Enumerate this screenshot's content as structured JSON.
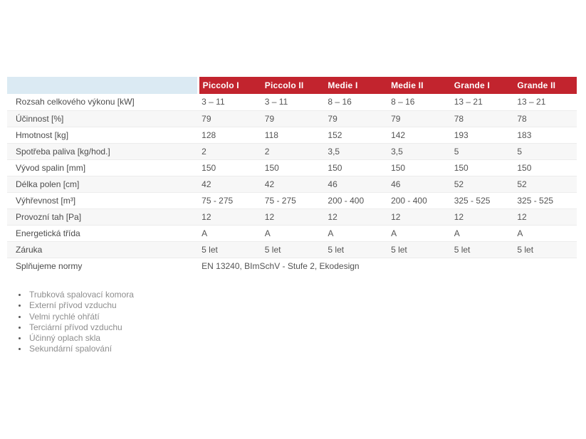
{
  "table": {
    "header": {
      "label_cell": "",
      "columns": [
        "Piccolo I",
        "Piccolo II",
        "Medie I",
        "Medie II",
        "Grande I",
        "Grande II"
      ]
    },
    "rows": [
      {
        "label": "Rozsah celkového výkonu [kW]",
        "values": [
          "3 – 11",
          "3 – 11",
          "8 – 16",
          "8 – 16",
          "13 – 21",
          "13 – 21"
        ]
      },
      {
        "label": "Účinnost [%]",
        "values": [
          "79",
          "79",
          "79",
          "79",
          "78",
          "78"
        ]
      },
      {
        "label": "Hmotnost [kg]",
        "values": [
          "128",
          "118",
          "152",
          "142",
          "193",
          "183"
        ]
      },
      {
        "label": "Spotřeba paliva [kg/hod.]",
        "values": [
          "2",
          "2",
          "3,5",
          "3,5",
          "5",
          "5"
        ]
      },
      {
        "label": "Vývod spalin [mm]",
        "values": [
          "150",
          "150",
          "150",
          "150",
          "150",
          "150"
        ]
      },
      {
        "label": "Délka polen [cm]",
        "values": [
          "42",
          "42",
          "46",
          "46",
          "52",
          "52"
        ]
      },
      {
        "label": "Výhřevnost [m³]",
        "values": [
          "75 - 275",
          "75 - 275",
          "200 - 400",
          "200 - 400",
          "325 - 525",
          "325 - 525"
        ]
      },
      {
        "label": "Provozní tah [Pa]",
        "values": [
          "12",
          "12",
          "12",
          "12",
          "12",
          "12"
        ]
      },
      {
        "label": "Energetická třída",
        "values": [
          "A",
          "A",
          "A",
          "A",
          "A",
          "A"
        ]
      },
      {
        "label": "Záruka",
        "values": [
          "5 let",
          "5 let",
          "5 let",
          "5 let",
          "5 let",
          "5 let"
        ]
      }
    ],
    "norms_row": {
      "label": "Splňujeme normy",
      "value": "EN 13240, BImSchV - Stufe 2, Ekodesign"
    }
  },
  "features": [
    "Trubková spalovací komora",
    "Externí přívod vzduchu",
    "Velmi rychlé ohřátí",
    "Terciární přívod vzduchu",
    "Účinný oplach skla",
    "Sekundární spalování"
  ],
  "colors": {
    "header_red": "#c2242e",
    "header_label_bg": "#dbeaf3",
    "row_stripe": "#f7f7f7",
    "row_border": "#ececec",
    "table_text": "#4c4c4c",
    "feature_text": "#8e8e8e"
  }
}
